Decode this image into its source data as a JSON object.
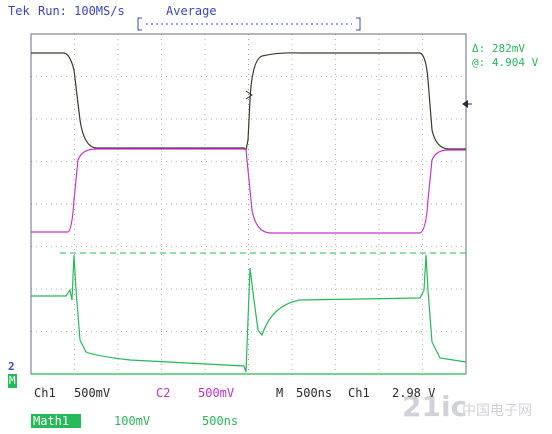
{
  "header": {
    "brand": "Tek",
    "status": "Run: 100MS/s",
    "mode": "Average"
  },
  "measurements": {
    "delta": "Δ: 282mV",
    "at": "@: 4.904 V"
  },
  "markers": {
    "ch2_marker": "2",
    "math_marker": "M"
  },
  "footer": {
    "ch1_label": "Ch1",
    "ch1_scale": "500mV",
    "c2_label": "C2",
    "c2_scale": "500mV",
    "timebase_label": "M",
    "timebase_value": "500ns",
    "trigger_source": "Ch1",
    "trigger_level": "2.98 V",
    "math_label": "Math1",
    "math_scale": "100mV",
    "math_time": "500ns"
  },
  "watermark": {
    "logo_text": "21ic",
    "site_text": "中国电子网"
  },
  "colors": {
    "ch1_trace": "#3a3a2a",
    "ch2_trace": "#cc33cc",
    "math_trace": "#27b858",
    "grid": "#9aa0b4",
    "frame": "#6a6f7f"
  }
}
